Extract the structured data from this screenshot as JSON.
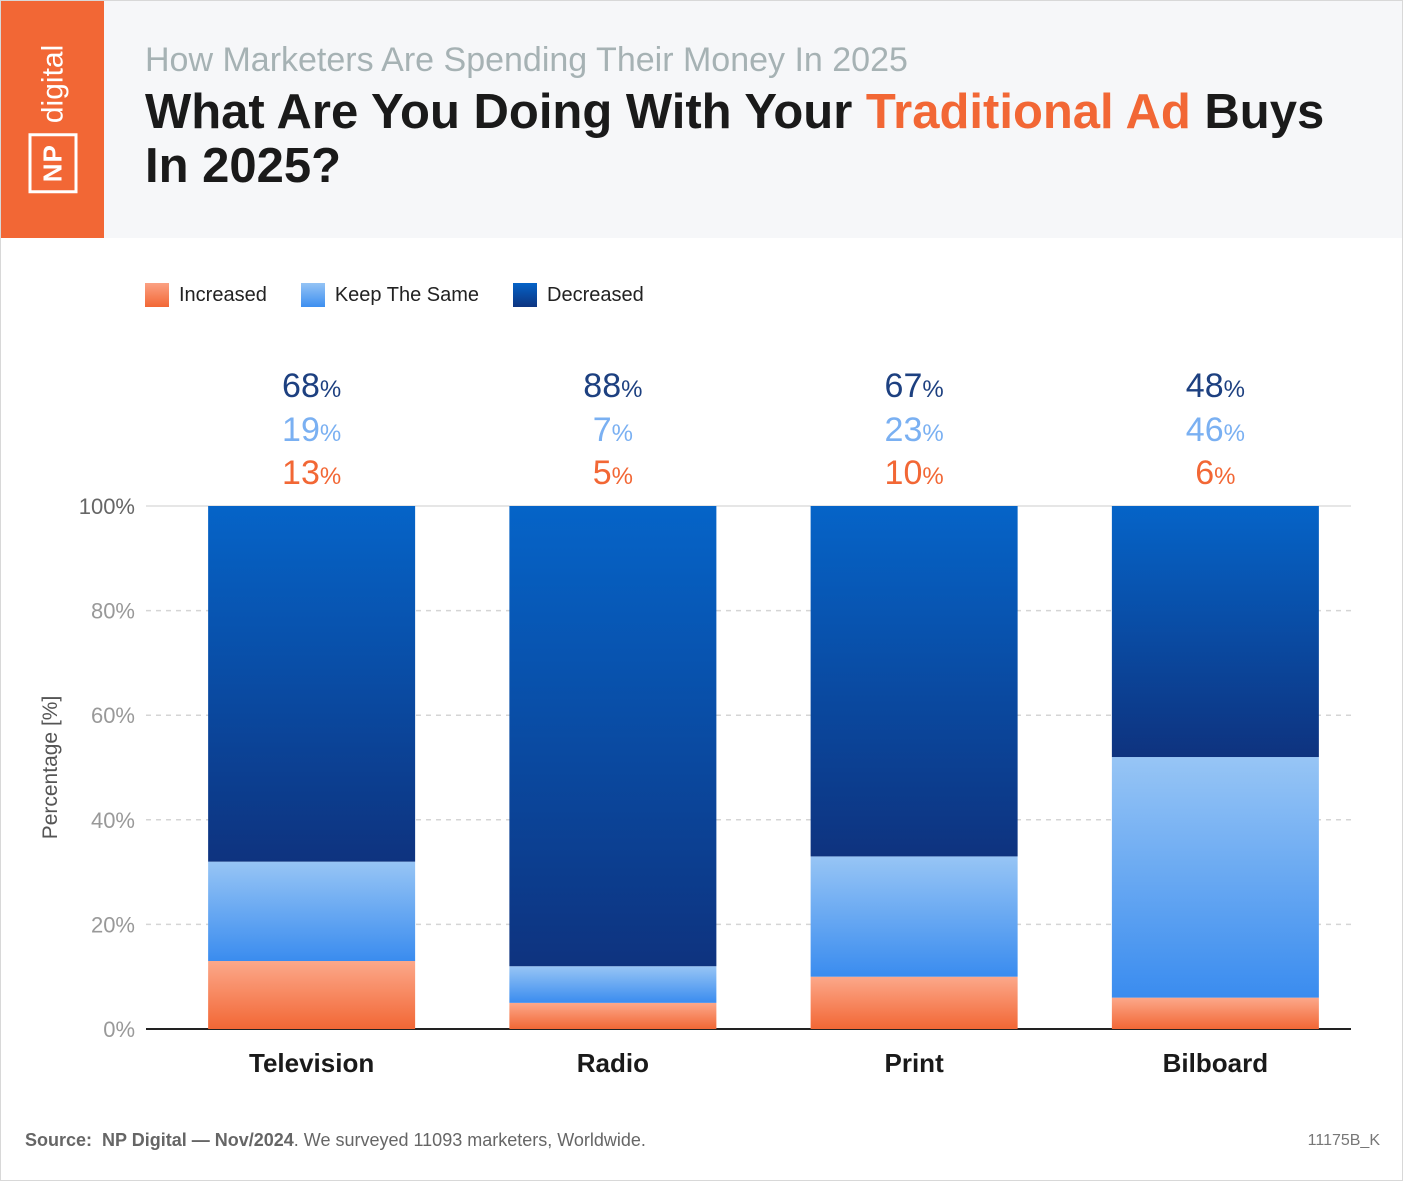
{
  "logo": {
    "np": "NP",
    "digital": "digital"
  },
  "header": {
    "subtitle": "How Marketers Are Spending Their Money In 2025",
    "title_part1": "What Are You Doing With Your ",
    "title_highlight": "Traditional Ad",
    "title_part2": " Buys In 2025?"
  },
  "colors": {
    "increased": "#f26735",
    "keep": "#6aaaf0",
    "decreased": "#0a3f8f",
    "label_decreased": "#1d4080",
    "label_keep": "#7ab0f2",
    "label_increased": "#f26735"
  },
  "chart_data": {
    "type": "bar",
    "stacked": true,
    "categories": [
      "Television",
      "Radio",
      "Print",
      "Bilboard"
    ],
    "series": [
      {
        "name": "Increased",
        "values": [
          13,
          5,
          10,
          6
        ]
      },
      {
        "name": "Keep The Same",
        "values": [
          19,
          7,
          23,
          46
        ]
      },
      {
        "name": "Decreased",
        "values": [
          68,
          88,
          67,
          48
        ]
      }
    ],
    "ylabel": "Percentage [%]",
    "ylim": [
      0,
      100
    ],
    "yticks": [
      "0%",
      "20%",
      "40%",
      "60%",
      "80%",
      "100%"
    ],
    "legend": "top-left",
    "grid": true
  },
  "footer": {
    "source_label": "Source:",
    "source_name": "NP Digital — Nov/2024",
    "source_text": ". We surveyed 11093 marketers, Worldwide.",
    "code": "11175B_K"
  }
}
